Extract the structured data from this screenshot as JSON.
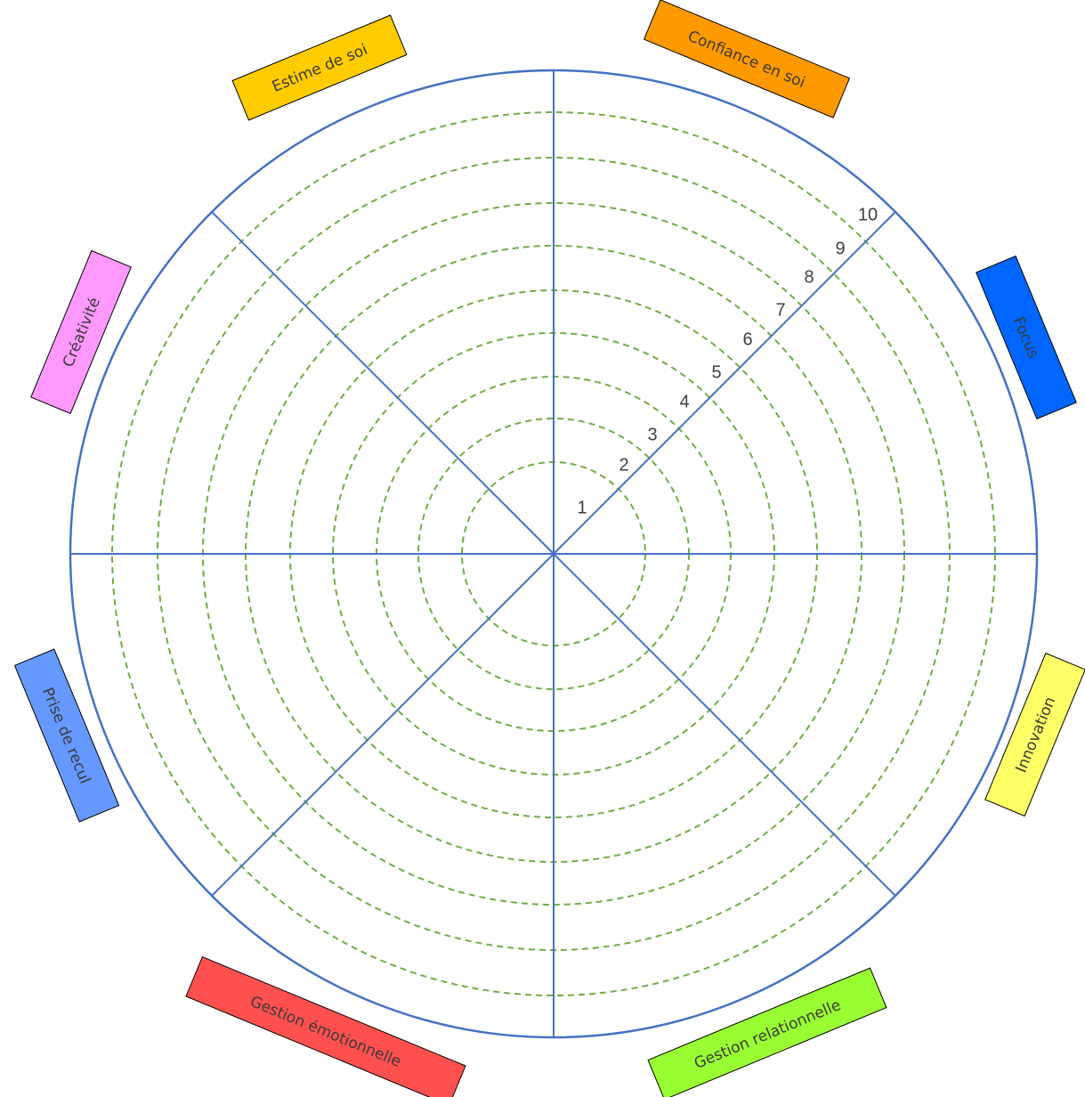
{
  "diagram": {
    "type": "wheel-of-life",
    "ring_count": 10,
    "scale_labels": [
      "1",
      "2",
      "3",
      "4",
      "5",
      "6",
      "7",
      "8",
      "9",
      "10"
    ],
    "categories": [
      {
        "label": "Confiance en soi",
        "color": "#ff9900",
        "text_color": "#3a3a3a"
      },
      {
        "label": "Focus",
        "color": "#0066ff",
        "text_color": "#1a1a1a"
      },
      {
        "label": "Innovation",
        "color": "#ffff66",
        "text_color": "#3a3a3a"
      },
      {
        "label": "Gestion relationnelle",
        "color": "#99ff33",
        "text_color": "#3a3a3a"
      },
      {
        "label": "Gestion émotionnelle",
        "color": "#ff5050",
        "text_color": "#3a3a3a"
      },
      {
        "label": "Prise de recul",
        "color": "#6699ff",
        "text_color": "#1a1a1a"
      },
      {
        "label": "Créativité",
        "color": "#ff99ff",
        "text_color": "#3a3a3a"
      },
      {
        "label": "Estime de soi",
        "color": "#ffcc00",
        "text_color": "#3a3a3a"
      }
    ],
    "line_color": "#4472c4",
    "ring_color": "#70ad47"
  }
}
